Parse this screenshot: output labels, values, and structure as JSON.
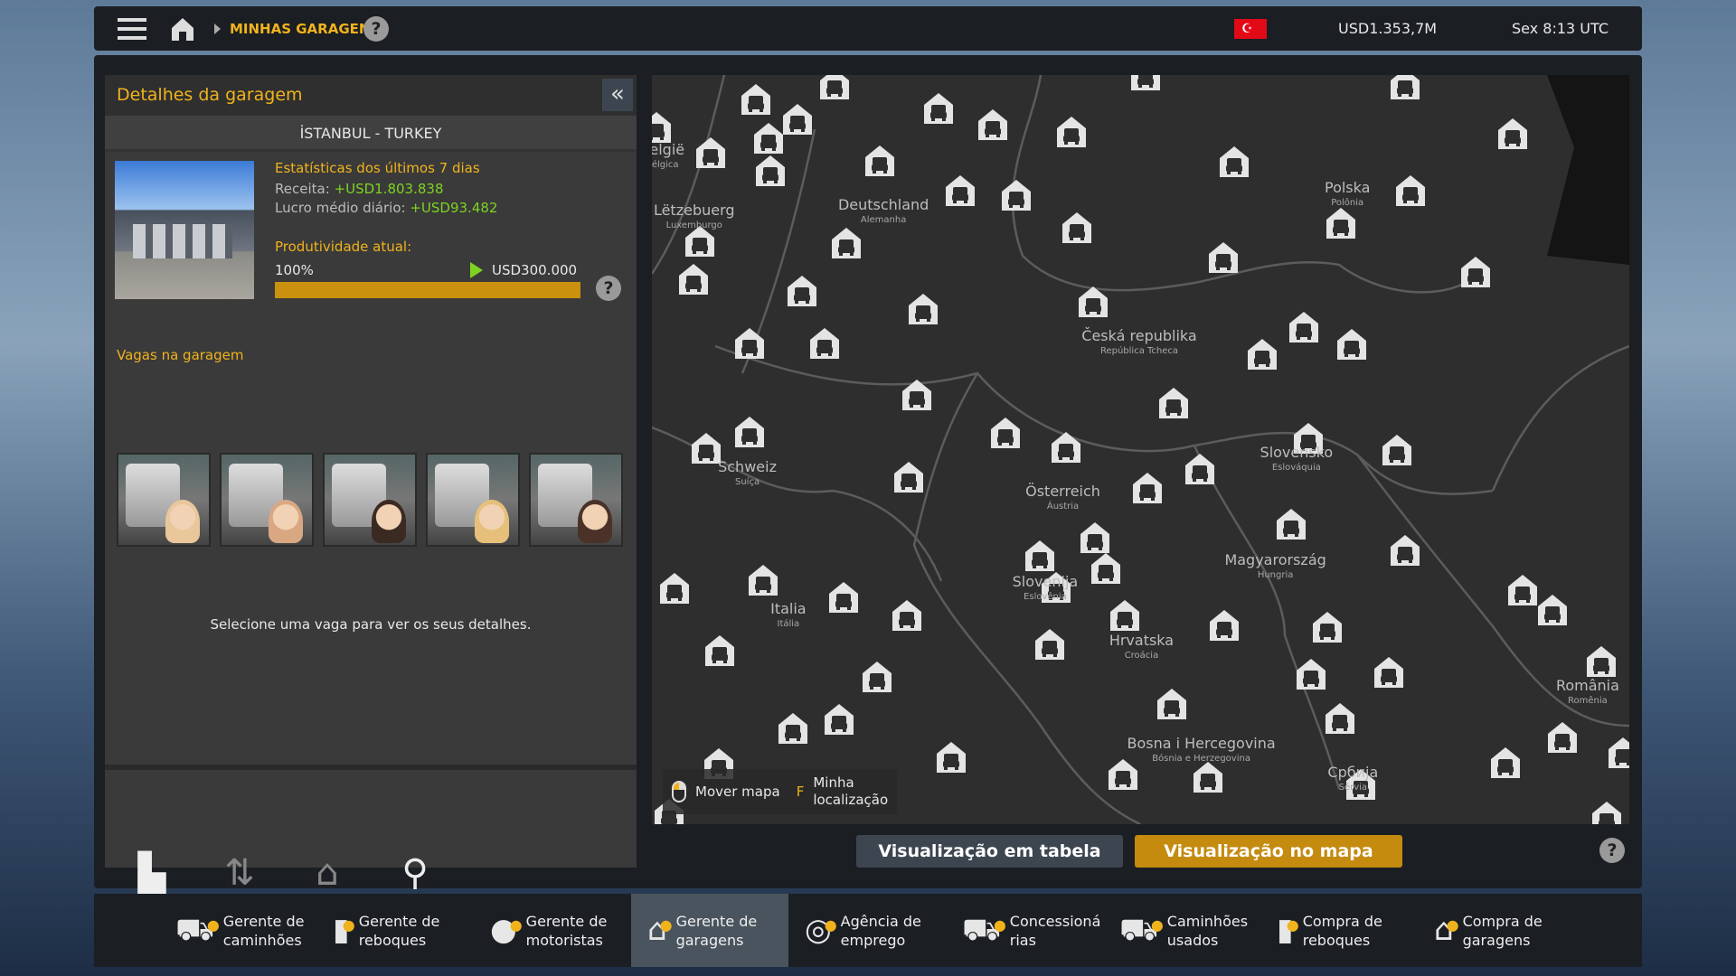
{
  "topbar": {
    "breadcrumb": "MINHAS GARAGENS",
    "help": "?",
    "money": "USD1.353,7M",
    "time": "Sex 8:13 UTC",
    "flag": "turkey"
  },
  "panel": {
    "title": "Detalhes da garagem",
    "collapse": "«",
    "location": "İSTANBUL - TURKEY",
    "stats_title": "Estatísticas dos últimos 7 dias",
    "revenue_label": "Receita:",
    "revenue": "+USD1.803.838",
    "profit_label": "Lucro médio diário:",
    "profit": "+USD93.482",
    "productivity_label": "Produtividade atual:",
    "productivity": "100%",
    "productivity_value": 100,
    "income": "USD300.000",
    "help": "?",
    "slots_title": "Vagas na garagem",
    "slots": [
      "driver-1",
      "driver-2",
      "driver-3",
      "driver-4",
      "driver-5"
    ],
    "hint": "Selecione uma vaga para ver os seus detalhes.",
    "actions": [
      {
        "label": "Resumo",
        "icon": "summary-icon",
        "enabled": true
      },
      {
        "label": "Vender",
        "icon": "sell-icon",
        "enabled": false
      },
      {
        "label": "Melhorar",
        "icon": "upgrade-icon",
        "enabled": false
      },
      {
        "label": "Viajar",
        "icon": "travel-icon",
        "enabled": true
      }
    ]
  },
  "map": {
    "move_key": "Mover mapa",
    "loc_key": "F",
    "loc_label_1": "Minha",
    "loc_label_2": "localização",
    "countries": [
      {
        "name": "Deutschland",
        "sub": "Alemanha"
      },
      {
        "name": "Polska",
        "sub": "Polônia"
      },
      {
        "name": "Lëtzebuerg",
        "sub": "Luxemburgo"
      },
      {
        "name": "Česká republika",
        "sub": "República Tcheca"
      },
      {
        "name": "Schweiz",
        "sub": "Suíça"
      },
      {
        "name": "Österreich",
        "sub": "Áustria"
      },
      {
        "name": "Slovensko",
        "sub": "Eslováquia"
      },
      {
        "name": "Magyarország",
        "sub": "Hungria"
      },
      {
        "name": "Slovenija",
        "sub": "Eslovênia"
      },
      {
        "name": "Italia",
        "sub": "Itália"
      },
      {
        "name": "Hrvatska",
        "sub": "Croácia"
      },
      {
        "name": "Bosna i Hercegovina",
        "sub": "Bósnia e Herzegovina"
      },
      {
        "name": "România",
        "sub": "Romênia"
      },
      {
        "name": "Србија",
        "sub": "Sérvia"
      },
      {
        "name": "België",
        "sub": "Bélgica"
      }
    ]
  },
  "view": {
    "table": "Visualização em tabela",
    "map": "Visualização no mapa",
    "help": "?"
  },
  "nav": [
    {
      "l1": "Gerente de",
      "l2": "caminhões"
    },
    {
      "l1": "Gerente de",
      "l2": "reboques"
    },
    {
      "l1": "Gerente de",
      "l2": "motoristas"
    },
    {
      "l1": "Gerente de",
      "l2": "garagens",
      "active": true
    },
    {
      "l1": "Agência de",
      "l2": "emprego"
    },
    {
      "l1": "Concessioná",
      "l2": "rias"
    },
    {
      "l1": "Caminhões",
      "l2": "usados"
    },
    {
      "l1": "Compra de",
      "l2": "reboques"
    },
    {
      "l1": "Compra de",
      "l2": "garagens"
    }
  ],
  "colors": {
    "accent": "#f0b31c",
    "positive": "#7ed321",
    "panel": "#3a3a3a",
    "bar": "#1b1e23"
  }
}
